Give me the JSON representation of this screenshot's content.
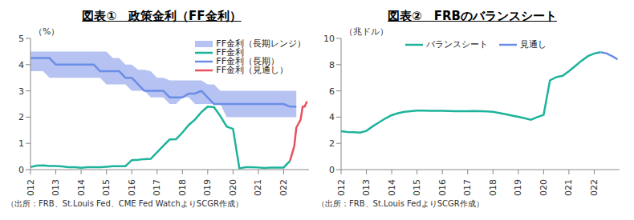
{
  "chart_data": [
    {
      "type": "line",
      "title": "図表①　政策金利（FF金利）",
      "y_label": "（%）",
      "source": "（出所：FRB、St.Louis Fed、CME  Fed WatchよりSCGR作成）",
      "legend": "upper right",
      "grid": false,
      "x": [
        2012,
        2012.25,
        2012.5,
        2012.75,
        2013,
        2013.25,
        2013.5,
        2013.75,
        2014,
        2014.25,
        2014.5,
        2014.75,
        2015,
        2015.25,
        2015.5,
        2015.75,
        2016,
        2016.25,
        2016.5,
        2016.75,
        2017,
        2017.25,
        2017.5,
        2017.75,
        2018,
        2018.25,
        2018.5,
        2018.75,
        2019,
        2019.25,
        2019.5,
        2019.75,
        2020,
        2020.25,
        2020.5,
        2020.75,
        2021,
        2021.25,
        2021.5,
        2021.75,
        2022,
        2022.25,
        2022.42,
        2022.5,
        2022.67,
        2022.75,
        2022.83,
        2022.92
      ],
      "xlim": [
        2012,
        2023
      ],
      "xticks": [
        2012,
        2013,
        2014,
        2015,
        2016,
        2017,
        2018,
        2019,
        2020,
        2021,
        2022
      ],
      "ylim": [
        0,
        5
      ],
      "yticks": [
        0,
        1,
        2,
        3,
        4,
        5
      ],
      "series": [
        {
          "name": "FF金利（長期レンジ）",
          "type": "range",
          "color": "#a9b9f0",
          "low": [
            3.75,
            3.75,
            3.75,
            3.5,
            3.5,
            3.5,
            3.5,
            3.5,
            3.5,
            3.5,
            3.5,
            3.5,
            3.25,
            3.25,
            3.25,
            3.25,
            3.0,
            3.0,
            3.0,
            2.75,
            2.75,
            2.75,
            2.5,
            2.5,
            2.75,
            2.75,
            2.5,
            2.5,
            2.5,
            2.5,
            2.5,
            2.0,
            2.0,
            2.0,
            2.0,
            2.0,
            2.0,
            2.0,
            2.0,
            2.0,
            2.0,
            2.0,
            2.0,
            2.0,
            null,
            null,
            null,
            null
          ],
          "high": [
            4.5,
            4.5,
            4.5,
            4.5,
            4.5,
            4.5,
            4.5,
            4.5,
            4.5,
            4.5,
            4.5,
            4.5,
            4.5,
            4.25,
            4.25,
            4.0,
            4.0,
            3.8,
            3.8,
            3.75,
            3.5,
            3.5,
            3.4,
            3.4,
            3.4,
            3.4,
            3.4,
            3.4,
            3.25,
            3.25,
            3.0,
            3.0,
            3.0,
            3.0,
            3.0,
            3.0,
            3.0,
            3.0,
            3.0,
            3.0,
            3.0,
            3.0,
            3.0,
            3.0,
            null,
            null,
            null,
            null
          ]
        },
        {
          "name": "FF金利",
          "type": "line",
          "color": "#1db39b",
          "values": [
            0.1,
            0.15,
            0.16,
            0.14,
            0.14,
            0.12,
            0.09,
            0.09,
            0.07,
            0.09,
            0.09,
            0.09,
            0.11,
            0.13,
            0.13,
            0.13,
            0.36,
            0.37,
            0.4,
            0.41,
            0.66,
            0.91,
            1.15,
            1.16,
            1.41,
            1.7,
            1.91,
            2.19,
            2.4,
            2.38,
            2.04,
            1.64,
            1.55,
            0.05,
            0.09,
            0.09,
            0.08,
            0.06,
            0.08,
            0.08,
            0.08,
            0.33,
            null,
            null,
            null,
            null,
            null,
            null
          ]
        },
        {
          "name": "FF金利（長期）",
          "type": "line",
          "color": "#6a8de6",
          "values": [
            4.25,
            4.25,
            4.25,
            4.25,
            4.0,
            4.0,
            4.0,
            4.0,
            4.0,
            4.0,
            4.0,
            3.75,
            3.75,
            3.75,
            3.75,
            3.5,
            3.5,
            3.25,
            3.0,
            3.0,
            3.0,
            3.0,
            2.75,
            2.75,
            2.75,
            2.9,
            2.9,
            3.0,
            2.75,
            2.5,
            2.5,
            2.5,
            2.5,
            2.5,
            2.5,
            2.5,
            2.5,
            2.5,
            2.5,
            2.5,
            2.5,
            2.4,
            2.4,
            2.4,
            null,
            null,
            null,
            null
          ]
        },
        {
          "name": "FF金利（見通し）",
          "type": "line",
          "color": "#e8505b",
          "values": [
            null,
            null,
            null,
            null,
            null,
            null,
            null,
            null,
            null,
            null,
            null,
            null,
            null,
            null,
            null,
            null,
            null,
            null,
            null,
            null,
            null,
            null,
            null,
            null,
            null,
            null,
            null,
            null,
            null,
            null,
            null,
            null,
            null,
            null,
            null,
            null,
            null,
            null,
            null,
            null,
            null,
            0.33,
            0.9,
            1.6,
            1.9,
            2.4,
            2.4,
            2.6
          ]
        }
      ]
    },
    {
      "type": "line",
      "title": "図表②　FRBのバランスシート",
      "y_label": "（兆ドル）",
      "source": "（出所：FRB、St.Louis FedよりSCGR作成）",
      "legend": "top",
      "grid": false,
      "x": [
        2012,
        2012.25,
        2012.5,
        2012.75,
        2013,
        2013.25,
        2013.5,
        2013.75,
        2014,
        2014.25,
        2014.5,
        2014.75,
        2015,
        2015.25,
        2015.5,
        2015.75,
        2016,
        2016.25,
        2016.5,
        2016.75,
        2017,
        2017.25,
        2017.5,
        2017.75,
        2018,
        2018.25,
        2018.5,
        2018.75,
        2019,
        2019.25,
        2019.5,
        2019.75,
        2020,
        2020.25,
        2020.5,
        2020.75,
        2021,
        2021.25,
        2021.5,
        2021.75,
        2022,
        2022.25,
        2022.5,
        2022.75,
        2022.92
      ],
      "xlim": [
        2012,
        2023
      ],
      "xticks": [
        2012,
        2013,
        2014,
        2015,
        2016,
        2017,
        2018,
        2019,
        2020,
        2021,
        2022
      ],
      "ylim": [
        0,
        10
      ],
      "yticks": [
        0,
        2,
        4,
        6,
        8,
        10
      ],
      "series": [
        {
          "name": "バランスシート",
          "type": "line",
          "color": "#1db39b",
          "values": [
            2.92,
            2.87,
            2.85,
            2.82,
            2.95,
            3.3,
            3.6,
            3.9,
            4.15,
            4.3,
            4.4,
            4.45,
            4.5,
            4.5,
            4.48,
            4.48,
            4.48,
            4.47,
            4.45,
            4.45,
            4.45,
            4.46,
            4.45,
            4.44,
            4.4,
            4.32,
            4.22,
            4.12,
            4.02,
            3.92,
            3.8,
            4.0,
            4.17,
            6.8,
            7.05,
            7.15,
            7.5,
            7.9,
            8.3,
            8.65,
            8.85,
            8.95,
            null,
            null,
            null
          ]
        },
        {
          "name": "見通し",
          "type": "line",
          "color": "#6a8de6",
          "values": [
            null,
            null,
            null,
            null,
            null,
            null,
            null,
            null,
            null,
            null,
            null,
            null,
            null,
            null,
            null,
            null,
            null,
            null,
            null,
            null,
            null,
            null,
            null,
            null,
            null,
            null,
            null,
            null,
            null,
            null,
            null,
            null,
            null,
            null,
            null,
            null,
            null,
            null,
            null,
            null,
            null,
            8.95,
            8.85,
            8.6,
            8.4
          ]
        }
      ]
    }
  ]
}
